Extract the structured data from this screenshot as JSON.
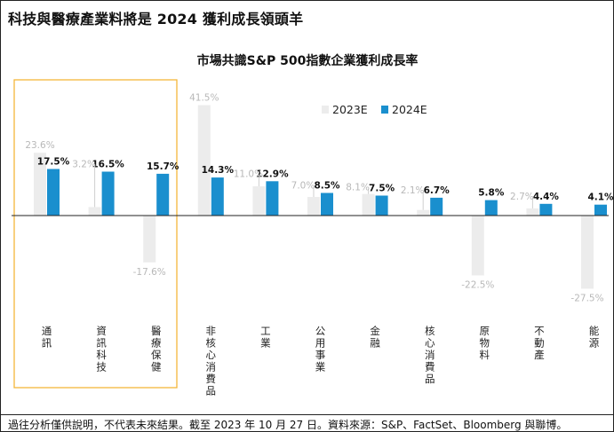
{
  "headline": "科技與醫療產業料將是 2024 獲利成長領頭羊",
  "footnote": "過往分析僅供說明，不代表未來結果。截至 2023 年 10 月 27 日。資料來源：S&P、FactSet、Bloomberg 與聯博。",
  "colors": {
    "bar_2023": "#ececec",
    "bar_2024": "#1a8fce",
    "highlight_box": "#f4b63a",
    "connector": "#cfcfcf"
  },
  "chart_data": {
    "type": "bar",
    "title": "市場共識S&P 500指數企業獲利成長率",
    "xlabel": "",
    "ylabel": "",
    "ylim": [
      -30,
      45
    ],
    "unit": "%",
    "categories": [
      "通訊",
      "資訊科技",
      "醫療保健",
      "非核心消費品",
      "工業",
      "公用事業",
      "金融",
      "核心消費品",
      "原物料",
      "不動產",
      "能源"
    ],
    "series": [
      {
        "name": "2023E",
        "values": [
          23.6,
          3.2,
          -17.6,
          41.5,
          11.0,
          7.0,
          8.1,
          2.1,
          -22.5,
          2.7,
          -27.5
        ]
      },
      {
        "name": "2024E",
        "values": [
          17.5,
          16.5,
          15.7,
          14.3,
          12.9,
          8.5,
          7.5,
          6.7,
          5.8,
          4.4,
          4.1
        ]
      }
    ],
    "data_labels": {
      "2023E": [
        "23.6%",
        "3.2%",
        "-17.6%",
        "41.5%",
        "11.0%",
        "7.0%",
        "8.1%",
        "2.1%",
        "-22.5%",
        "2.7%",
        "-27.5%"
      ],
      "2024E": [
        "17.5%",
        "16.5%",
        "15.7%",
        "14.3%",
        "12.9%",
        "8.5%",
        "7.5%",
        "6.7%",
        "5.8%",
        "4.4%",
        "4.1%"
      ]
    },
    "legend": [
      "2023E",
      "2024E"
    ],
    "legend_position": "top-right",
    "highlighted_categories": [
      "通訊",
      "資訊科技",
      "醫療保健"
    ],
    "grid": false
  }
}
